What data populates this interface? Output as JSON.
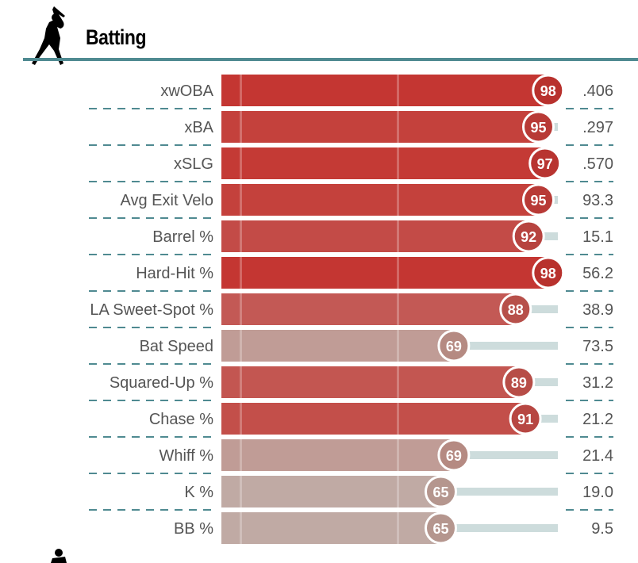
{
  "section": {
    "title": "Batting",
    "icon": "batter-silhouette-icon"
  },
  "chart_data": {
    "type": "bar",
    "orientation": "horizontal",
    "xlim": [
      0,
      100
    ],
    "categories": [
      "xwOBA",
      "xBA",
      "xSLG",
      "Avg Exit Velo",
      "Barrel %",
      "Hard-Hit %",
      "LA Sweet-Spot %",
      "Bat Speed",
      "Squared-Up %",
      "Chase %",
      "Whiff %",
      "K %",
      "BB %"
    ],
    "percentiles": [
      98,
      95,
      97,
      95,
      92,
      98,
      88,
      69,
      89,
      91,
      69,
      65,
      65
    ],
    "values": [
      ".406",
      ".297",
      ".570",
      "93.3",
      "15.1",
      "56.2",
      "38.9",
      "73.5",
      "31.2",
      "21.2",
      "21.4",
      "19.0",
      "9.5"
    ]
  },
  "colors": {
    "accent": "#4f8a91",
    "track": "#cddcdc",
    "high": "#c43632",
    "low": "#c0aaa4"
  }
}
